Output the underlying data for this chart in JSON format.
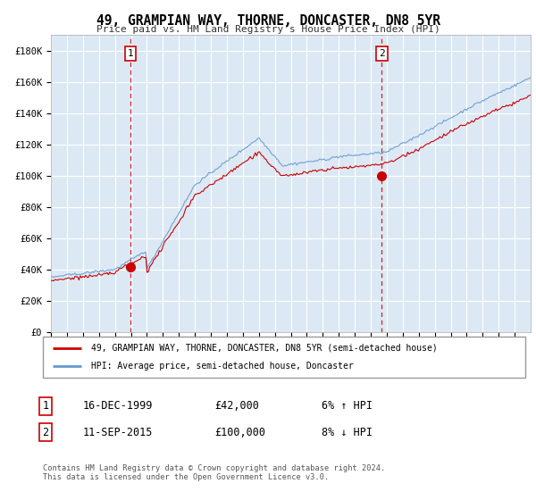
{
  "title": "49, GRAMPIAN WAY, THORNE, DONCASTER, DN8 5YR",
  "subtitle": "Price paid vs. HM Land Registry's House Price Index (HPI)",
  "ylabel_ticks": [
    "£0",
    "£20K",
    "£40K",
    "£60K",
    "£80K",
    "£100K",
    "£120K",
    "£140K",
    "£160K",
    "£180K"
  ],
  "ytick_vals": [
    0,
    20000,
    40000,
    60000,
    80000,
    100000,
    120000,
    140000,
    160000,
    180000
  ],
  "ylim": [
    0,
    190000
  ],
  "background_color": "#ffffff",
  "plot_bg_color": "#dce9f5",
  "grid_color": "#ffffff",
  "sale1_year": 1999.96,
  "sale1_price": 42000,
  "sale2_year": 2015.69,
  "sale2_price": 100000,
  "legend_line1": "49, GRAMPIAN WAY, THORNE, DONCASTER, DN8 5YR (semi-detached house)",
  "legend_line2": "HPI: Average price, semi-detached house, Doncaster",
  "table_row1": [
    "1",
    "16-DEC-1999",
    "£42,000",
    "6% ↑ HPI"
  ],
  "table_row2": [
    "2",
    "11-SEP-2015",
    "£100,000",
    "8% ↓ HPI"
  ],
  "footer": "Contains HM Land Registry data © Crown copyright and database right 2024.\nThis data is licensed under the Open Government Licence v3.0.",
  "line_color_red": "#cc0000",
  "line_color_blue": "#6699cc",
  "dashed_red": "#cc0000"
}
